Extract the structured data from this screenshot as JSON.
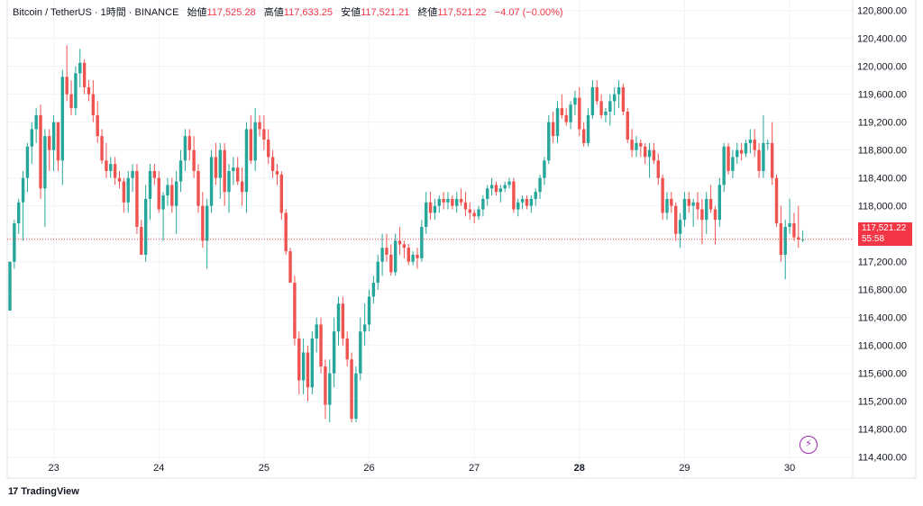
{
  "legend": {
    "symbol": "Bitcoin / TetherUS · 1時間 · BINANCE",
    "open_label": "始値",
    "open_value": "117,525.28",
    "high_label": "高値",
    "high_value": "117,633.25",
    "low_label": "安値",
    "low_value": "117,521.21",
    "close_label": "終値",
    "close_value": "117,521.22",
    "change": "−4.07 (−0.00%)"
  },
  "last_price": {
    "price": "117,521.22",
    "countdown": "55:58"
  },
  "branding": {
    "logo_text": "17",
    "name": "TradingView"
  },
  "colors": {
    "up": "#26a69a",
    "down": "#ef5350",
    "grid": "#f0f3fa",
    "last_line": "#f23645",
    "flash": "#9c27b0"
  },
  "icons": {
    "flash": "lightning-icon"
  },
  "chart_data": {
    "type": "candlestick",
    "title": "Bitcoin / TetherUS · 1時間 · BINANCE",
    "ylim": [
      114100,
      120950
    ],
    "y_ticks": [
      "120,800.00",
      "120,400.00",
      "120,000.00",
      "119,600.00",
      "119,200.00",
      "118,800.00",
      "118,400.00",
      "118,000.00",
      "117,600.00",
      "117,200.00",
      "116,800.00",
      "116,400.00",
      "116,000.00",
      "115,600.00",
      "115,200.00",
      "114,800.00",
      "114,400.00"
    ],
    "y_tick_values": [
      120800,
      120400,
      120000,
      119600,
      119200,
      118800,
      118400,
      118000,
      117600,
      117200,
      116800,
      116400,
      116000,
      115600,
      115200,
      114800,
      114400
    ],
    "x_ticks": [
      {
        "label": "23",
        "index": 10,
        "bold": false
      },
      {
        "label": "24",
        "index": 34,
        "bold": false
      },
      {
        "label": "25",
        "index": 58,
        "bold": false
      },
      {
        "label": "26",
        "index": 82,
        "bold": false
      },
      {
        "label": "27",
        "index": 106,
        "bold": false
      },
      {
        "label": "28",
        "index": 130,
        "bold": true
      },
      {
        "label": "29",
        "index": 154,
        "bold": false
      },
      {
        "label": "30",
        "index": 178,
        "bold": false
      }
    ],
    "last_close": 117521.22,
    "candles": [
      [
        116500,
        117200,
        116500,
        117200
      ],
      [
        117200,
        117800,
        117100,
        117750
      ],
      [
        117750,
        118100,
        117600,
        118050
      ],
      [
        118050,
        118500,
        117500,
        118400
      ],
      [
        118400,
        118900,
        118200,
        118850
      ],
      [
        118850,
        119200,
        118600,
        119100
      ],
      [
        119100,
        119400,
        118900,
        119300
      ],
      [
        119300,
        119450,
        118100,
        118250
      ],
      [
        118250,
        119100,
        117700,
        119000
      ],
      [
        119000,
        119100,
        118500,
        118800
      ],
      [
        118800,
        119300,
        118500,
        119200
      ],
      [
        119200,
        119200,
        118500,
        118650
      ],
      [
        118650,
        119950,
        118300,
        119850
      ],
      [
        119850,
        120300,
        119500,
        119600
      ],
      [
        119600,
        119800,
        119300,
        119400
      ],
      [
        119400,
        120000,
        119300,
        119900
      ],
      [
        119900,
        120250,
        119700,
        120050
      ],
      [
        120050,
        120100,
        119600,
        119700
      ],
      [
        119700,
        119800,
        119500,
        119600
      ],
      [
        119600,
        119800,
        119200,
        119300
      ],
      [
        119300,
        119500,
        118900,
        119000
      ],
      [
        119000,
        119100,
        118600,
        118650
      ],
      [
        118650,
        118900,
        118400,
        118500
      ],
      [
        118500,
        118700,
        118400,
        118600
      ],
      [
        118600,
        118700,
        118300,
        118400
      ],
      [
        118400,
        118500,
        118250,
        118350
      ],
      [
        118350,
        118400,
        117900,
        118050
      ],
      [
        118050,
        118500,
        117900,
        118400
      ],
      [
        118400,
        118600,
        118200,
        118500
      ],
      [
        118500,
        118600,
        117600,
        117700
      ],
      [
        117700,
        117800,
        117300,
        117300
      ],
      [
        117300,
        118300,
        117200,
        118100
      ],
      [
        118100,
        118600,
        117800,
        118500
      ],
      [
        118500,
        118600,
        118300,
        118400
      ],
      [
        118400,
        118500,
        117900,
        117950
      ],
      [
        117950,
        118200,
        117500,
        118150
      ],
      [
        118150,
        118400,
        118000,
        118300
      ],
      [
        118300,
        118400,
        117900,
        118000
      ],
      [
        118000,
        118500,
        117600,
        118350
      ],
      [
        118350,
        118800,
        118200,
        118650
      ],
      [
        118650,
        119100,
        118500,
        119000
      ],
      [
        119000,
        119100,
        118650,
        118800
      ],
      [
        118800,
        119000,
        118400,
        118500
      ],
      [
        118500,
        118600,
        117900,
        118000
      ],
      [
        118000,
        118200,
        117400,
        117500
      ],
      [
        117500,
        118100,
        117100,
        118000
      ],
      [
        118000,
        118800,
        117900,
        118700
      ],
      [
        118700,
        118900,
        118300,
        118400
      ],
      [
        118400,
        118900,
        118100,
        118800
      ],
      [
        118800,
        118900,
        118000,
        118200
      ],
      [
        118200,
        118600,
        117900,
        118500
      ],
      [
        118500,
        118700,
        118300,
        118550
      ],
      [
        118550,
        118700,
        118300,
        118350
      ],
      [
        118350,
        118550,
        118000,
        118200
      ],
      [
        118200,
        119200,
        117900,
        119100
      ],
      [
        119100,
        119300,
        118600,
        118650
      ],
      [
        118650,
        119400,
        118500,
        119200
      ],
      [
        119200,
        119300,
        119000,
        119100
      ],
      [
        119100,
        119300,
        118800,
        118950
      ],
      [
        118950,
        119100,
        118600,
        118700
      ],
      [
        118700,
        118800,
        118400,
        118500
      ],
      [
        118500,
        118600,
        118300,
        118450
      ],
      [
        118450,
        118500,
        117800,
        117900
      ],
      [
        117900,
        117950,
        117300,
        117350
      ],
      [
        117350,
        117400,
        116900,
        116900
      ],
      [
        116900,
        117000,
        116000,
        116100
      ],
      [
        116100,
        116200,
        115300,
        115500
      ],
      [
        115500,
        116100,
        115300,
        115900
      ],
      [
        115900,
        116000,
        115200,
        115400
      ],
      [
        115400,
        116200,
        115300,
        116100
      ],
      [
        116100,
        116400,
        115900,
        116300
      ],
      [
        116300,
        116400,
        115600,
        115700
      ],
      [
        115700,
        115800,
        114950,
        115150
      ],
      [
        115150,
        115800,
        114900,
        115600
      ],
      [
        115600,
        116400,
        115400,
        116200
      ],
      [
        116200,
        116700,
        116000,
        116600
      ],
      [
        116600,
        116700,
        116000,
        116100
      ],
      [
        116100,
        116200,
        115700,
        115800
      ],
      [
        115800,
        115900,
        114900,
        114950
      ],
      [
        114950,
        115700,
        114900,
        115600
      ],
      [
        115600,
        116400,
        115500,
        116200
      ],
      [
        116200,
        116600,
        116000,
        116300
      ],
      [
        116300,
        116800,
        116200,
        116700
      ],
      [
        116700,
        117000,
        116600,
        116900
      ],
      [
        116900,
        117300,
        116800,
        117200
      ],
      [
        117200,
        117600,
        117000,
        117400
      ],
      [
        117400,
        117600,
        117200,
        117300
      ],
      [
        117300,
        117450,
        117000,
        117050
      ],
      [
        117050,
        117600,
        117000,
        117500
      ],
      [
        117500,
        117700,
        117300,
        117450
      ],
      [
        117450,
        117500,
        117250,
        117400
      ],
      [
        117400,
        117450,
        117150,
        117200
      ],
      [
        117200,
        117350,
        117150,
        117300
      ],
      [
        117300,
        117400,
        117100,
        117250
      ],
      [
        117250,
        117800,
        117200,
        117700
      ],
      [
        117700,
        118200,
        117600,
        118050
      ],
      [
        118050,
        118200,
        117800,
        117900
      ],
      [
        117900,
        118100,
        117800,
        118000
      ],
      [
        118000,
        118150,
        117900,
        118100
      ],
      [
        118100,
        118200,
        117950,
        118050
      ],
      [
        118050,
        118200,
        117950,
        118100
      ],
      [
        118100,
        118150,
        117950,
        118000
      ],
      [
        118000,
        118200,
        117900,
        118100
      ],
      [
        118100,
        118250,
        118000,
        118050
      ],
      [
        118050,
        118200,
        117850,
        117950
      ],
      [
        117950,
        118050,
        117800,
        117900
      ],
      [
        117900,
        117950,
        117750,
        117850
      ],
      [
        117850,
        118000,
        117800,
        117950
      ],
      [
        117950,
        118150,
        117850,
        118100
      ],
      [
        118100,
        118300,
        118000,
        118250
      ],
      [
        118250,
        118400,
        118150,
        118300
      ],
      [
        118300,
        118350,
        118150,
        118200
      ],
      [
        118200,
        118300,
        118050,
        118250
      ],
      [
        118250,
        118350,
        118200,
        118300
      ],
      [
        118300,
        118400,
        118250,
        118350
      ],
      [
        118350,
        118400,
        117900,
        117950
      ],
      [
        117950,
        118100,
        117850,
        118050
      ],
      [
        118050,
        118150,
        117950,
        118100
      ],
      [
        118100,
        118150,
        117950,
        118000
      ],
      [
        118000,
        118150,
        117900,
        118100
      ],
      [
        118100,
        118250,
        118000,
        118200
      ],
      [
        118200,
        118450,
        118100,
        118400
      ],
      [
        118400,
        118700,
        118300,
        118650
      ],
      [
        118650,
        119300,
        118600,
        119200
      ],
      [
        119200,
        119350,
        118900,
        119000
      ],
      [
        119000,
        119500,
        118900,
        119400
      ],
      [
        119400,
        119600,
        119250,
        119300
      ],
      [
        119300,
        119400,
        119150,
        119200
      ],
      [
        119200,
        119500,
        119100,
        119450
      ],
      [
        119450,
        119650,
        119300,
        119550
      ],
      [
        119550,
        119700,
        119000,
        119100
      ],
      [
        119100,
        119200,
        118850,
        118900
      ],
      [
        118900,
        119400,
        118850,
        119300
      ],
      [
        119300,
        119800,
        119250,
        119700
      ],
      [
        119700,
        119800,
        119450,
        119500
      ],
      [
        119500,
        119600,
        119250,
        119300
      ],
      [
        119300,
        119400,
        119200,
        119350
      ],
      [
        119350,
        119600,
        119150,
        119500
      ],
      [
        119500,
        119700,
        119300,
        119600
      ],
      [
        119600,
        119800,
        119400,
        119700
      ],
      [
        119700,
        119750,
        119300,
        119350
      ],
      [
        119350,
        119400,
        118900,
        118950
      ],
      [
        118950,
        119100,
        118700,
        118800
      ],
      [
        118800,
        119000,
        118700,
        118900
      ],
      [
        118900,
        118950,
        118700,
        118850
      ],
      [
        118850,
        118900,
        118600,
        118700
      ],
      [
        118700,
        118900,
        118400,
        118800
      ],
      [
        118800,
        118900,
        118600,
        118650
      ],
      [
        118650,
        118750,
        118300,
        118400
      ],
      [
        118400,
        118450,
        117800,
        117900
      ],
      [
        117900,
        118200,
        117800,
        118100
      ],
      [
        118100,
        118200,
        117900,
        118000
      ],
      [
        118000,
        118050,
        117500,
        117600
      ],
      [
        117600,
        117900,
        117400,
        117800
      ],
      [
        117800,
        118200,
        117700,
        118100
      ],
      [
        118100,
        118200,
        117900,
        118000
      ],
      [
        118000,
        118100,
        117700,
        118050
      ],
      [
        118050,
        118200,
        117800,
        117950
      ],
      [
        117950,
        118100,
        117450,
        117800
      ],
      [
        117800,
        118200,
        117600,
        118100
      ],
      [
        118100,
        118300,
        117900,
        117950
      ],
      [
        117950,
        118000,
        117450,
        117800
      ],
      [
        117800,
        118400,
        117700,
        118300
      ],
      [
        118300,
        118900,
        118200,
        118850
      ],
      [
        118850,
        118900,
        118450,
        118500
      ],
      [
        118500,
        118800,
        118400,
        118700
      ],
      [
        118700,
        118900,
        118600,
        118800
      ],
      [
        118800,
        118900,
        118650,
        118750
      ],
      [
        118750,
        118950,
        118700,
        118900
      ],
      [
        118900,
        119100,
        118750,
        118950
      ],
      [
        118950,
        119100,
        118700,
        118800
      ],
      [
        118800,
        118900,
        118400,
        118500
      ],
      [
        118500,
        119300,
        118400,
        118900
      ],
      [
        118900,
        118950,
        118800,
        118900
      ],
      [
        118900,
        119200,
        118300,
        118400
      ],
      [
        118400,
        118450,
        117700,
        117750
      ],
      [
        117750,
        118000,
        117200,
        117300
      ],
      [
        117300,
        117800,
        116950,
        117700
      ],
      [
        117700,
        118100,
        117600,
        117750
      ],
      [
        117750,
        117900,
        117500,
        117550
      ],
      [
        117550,
        118000,
        117400,
        117520
      ],
      [
        117520,
        117650,
        117480,
        117521
      ]
    ]
  }
}
